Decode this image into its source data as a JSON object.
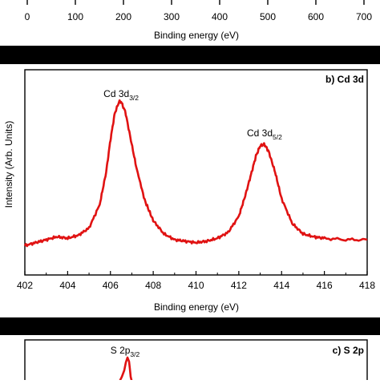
{
  "colors": {
    "line": "#e01212",
    "band": "#000000",
    "axis": "#000000",
    "background": "#ffffff"
  },
  "chart_data": [
    {
      "type": "line",
      "title": "",
      "xlabel": "Binding energy  (eV)",
      "ylabel": "",
      "x_ticks": [
        0,
        100,
        200,
        300,
        400,
        500,
        600,
        700
      ],
      "xlim": [
        0,
        750
      ],
      "series": []
    },
    {
      "type": "line",
      "title": "b) Cd 3d",
      "xlabel": "Binding energy (eV)",
      "ylabel": "Intensity (Arb. Units)",
      "xlim": [
        402,
        418
      ],
      "x_ticks": [
        402,
        404,
        406,
        408,
        410,
        412,
        414,
        416,
        418
      ],
      "y_ticks_labeled": false,
      "annotations": [
        {
          "main": "Cd 3d",
          "sub": "3/2",
          "x": 406.5
        },
        {
          "main": "Cd 3d",
          "sub": "5/2",
          "x": 413.2
        }
      ],
      "series": [
        {
          "x": [
            402.0,
            402.5,
            403.0,
            403.5,
            404.0,
            404.5,
            405.0,
            405.5,
            405.8,
            406.0,
            406.2,
            406.4,
            406.5,
            406.7,
            406.9,
            407.2,
            407.6,
            408.0,
            408.5,
            409.0,
            409.5,
            410.0,
            410.5,
            411.0,
            411.5,
            412.0,
            412.3,
            412.6,
            412.8,
            413.0,
            413.2,
            413.4,
            413.7,
            414.0,
            414.5,
            415.0,
            415.5,
            416.0,
            417.0,
            418.0
          ],
          "y": [
            0.02,
            0.04,
            0.06,
            0.08,
            0.07,
            0.09,
            0.14,
            0.3,
            0.52,
            0.74,
            0.92,
            1.0,
            1.0,
            0.93,
            0.78,
            0.56,
            0.33,
            0.19,
            0.1,
            0.06,
            0.05,
            0.04,
            0.05,
            0.07,
            0.11,
            0.22,
            0.36,
            0.52,
            0.63,
            0.7,
            0.71,
            0.66,
            0.52,
            0.34,
            0.17,
            0.1,
            0.08,
            0.07,
            0.06,
            0.06
          ]
        }
      ]
    },
    {
      "type": "line",
      "title": "c) S 2p",
      "xlabel": "",
      "ylabel": "",
      "annotations": [
        {
          "main": "S 2p",
          "sub": "3/2"
        }
      ],
      "series": []
    }
  ]
}
